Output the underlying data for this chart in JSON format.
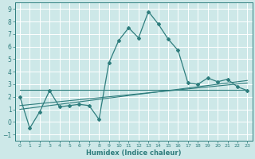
{
  "xlabel": "Humidex (Indice chaleur)",
  "bg_color": "#cde8e8",
  "grid_color": "#ffffff",
  "line_color": "#2e7d7d",
  "xlim": [
    -0.5,
    23.5
  ],
  "ylim": [
    -1.5,
    9.5
  ],
  "yticks": [
    -1,
    0,
    1,
    2,
    3,
    4,
    5,
    6,
    7,
    8,
    9
  ],
  "xticks": [
    0,
    1,
    2,
    3,
    4,
    5,
    6,
    7,
    8,
    9,
    10,
    11,
    12,
    13,
    14,
    15,
    16,
    17,
    18,
    19,
    20,
    21,
    22,
    23
  ],
  "main_x": [
    0,
    1,
    2,
    3,
    4,
    5,
    6,
    7,
    8,
    9,
    10,
    11,
    12,
    13,
    14,
    15,
    16,
    17,
    18,
    19,
    20,
    21,
    22,
    23
  ],
  "main_y": [
    2.0,
    -0.5,
    0.8,
    2.5,
    1.2,
    1.3,
    1.4,
    1.3,
    0.2,
    4.7,
    6.5,
    7.5,
    6.7,
    8.8,
    7.8,
    6.6,
    5.7,
    3.1,
    3.0,
    3.5,
    3.2,
    3.4,
    2.8,
    2.5
  ],
  "trend1_x": [
    0,
    23
  ],
  "trend1_y": [
    2.55,
    2.55
  ],
  "trend2_x": [
    0,
    23
  ],
  "trend2_y": [
    1.3,
    3.1
  ],
  "trend3_x": [
    0,
    23
  ],
  "trend3_y": [
    1.0,
    3.3
  ]
}
